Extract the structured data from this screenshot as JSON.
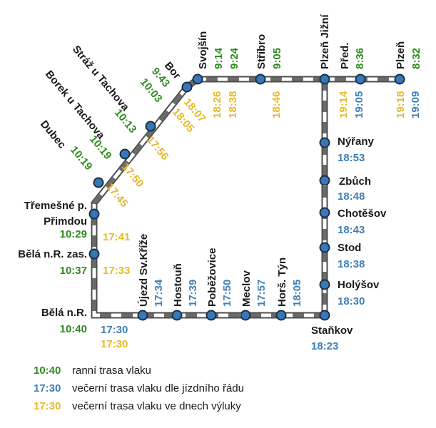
{
  "colors": {
    "green": "#2e8b1e",
    "blue": "#3d7fb5",
    "yellow": "#e8b923",
    "track": "#6b6b6b",
    "stop_fill": "#3777b8",
    "stop_stroke": "#1b2f45"
  },
  "stations": {
    "plzen": {
      "name": "Plzeň",
      "green": "8:32",
      "blue": "19:09",
      "yellow": "19:18"
    },
    "pred": {
      "name": "Před.",
      "green": "8:36",
      "blue": "19:05",
      "yellow": "19:14"
    },
    "plzen_jizni": {
      "name": "Plzeň Jižní"
    },
    "stribro": {
      "name": "Stříbro",
      "green": "9:05",
      "yellow": "18:46"
    },
    "svojsin": {
      "name": "Svojšín",
      "green1": "9:14",
      "green2": "9:24",
      "yellow1": "18:26",
      "yellow2": "18:38"
    },
    "bor": {
      "name": "Bor",
      "green1": "9:43",
      "green2": "10:03",
      "yellow1": "18:07",
      "yellow2": "18:05"
    },
    "straz": {
      "name": "Stráž u Tachova",
      "green": "10:13",
      "yellow": "17:56"
    },
    "borek": {
      "name": "Borek u Tachova",
      "green": "10:19",
      "yellow": "17:50"
    },
    "dubec": {
      "name": "Dubec",
      "green": "10:19",
      "yellow": "17:45"
    },
    "tremesne": {
      "name1": "Třemešné p.",
      "name2": "Přimdou",
      "green": "10:29",
      "yellow": "17:41"
    },
    "bela_zas": {
      "name": "Bělá n.R. zas.",
      "green": "10:37",
      "yellow": "17:33"
    },
    "bela": {
      "name": "Bělá n.R.",
      "green": "10:40",
      "blue": "17:30",
      "yellow": "17:30"
    },
    "ujezd": {
      "name": "Újezd Sv.Kříže",
      "blue": "17:34"
    },
    "hostoun": {
      "name": "Hostouň",
      "blue": "17:39"
    },
    "pobezovice": {
      "name": "Poběžovice",
      "blue": "17:50"
    },
    "meclov": {
      "name": "Meclov",
      "blue": "17:57"
    },
    "hors_tyn": {
      "name": "Horš. Týn",
      "blue": "18:05"
    },
    "stankov": {
      "name": "Staňkov",
      "blue": "18:23"
    },
    "holysov": {
      "name": "Holýšov",
      "blue": "18:30"
    },
    "stod": {
      "name": "Stod",
      "blue": "18:38"
    },
    "chotesov": {
      "name": "Chotěšov",
      "blue": "18:43"
    },
    "zbuch": {
      "name": "Zbůch",
      "blue": "18:48"
    },
    "nyrany": {
      "name": "Nýřany",
      "blue": "18:53"
    }
  },
  "legend": [
    {
      "time": "10:40",
      "color": "green",
      "text": "ranní trasa vlaku"
    },
    {
      "time": "17:30",
      "color": "blue",
      "text": "večerní trasa vlaku dle jízdního řádu"
    },
    {
      "time": "17:30",
      "color": "yellow",
      "text": "večerní trasa vlaku ve dnech výluky"
    }
  ]
}
